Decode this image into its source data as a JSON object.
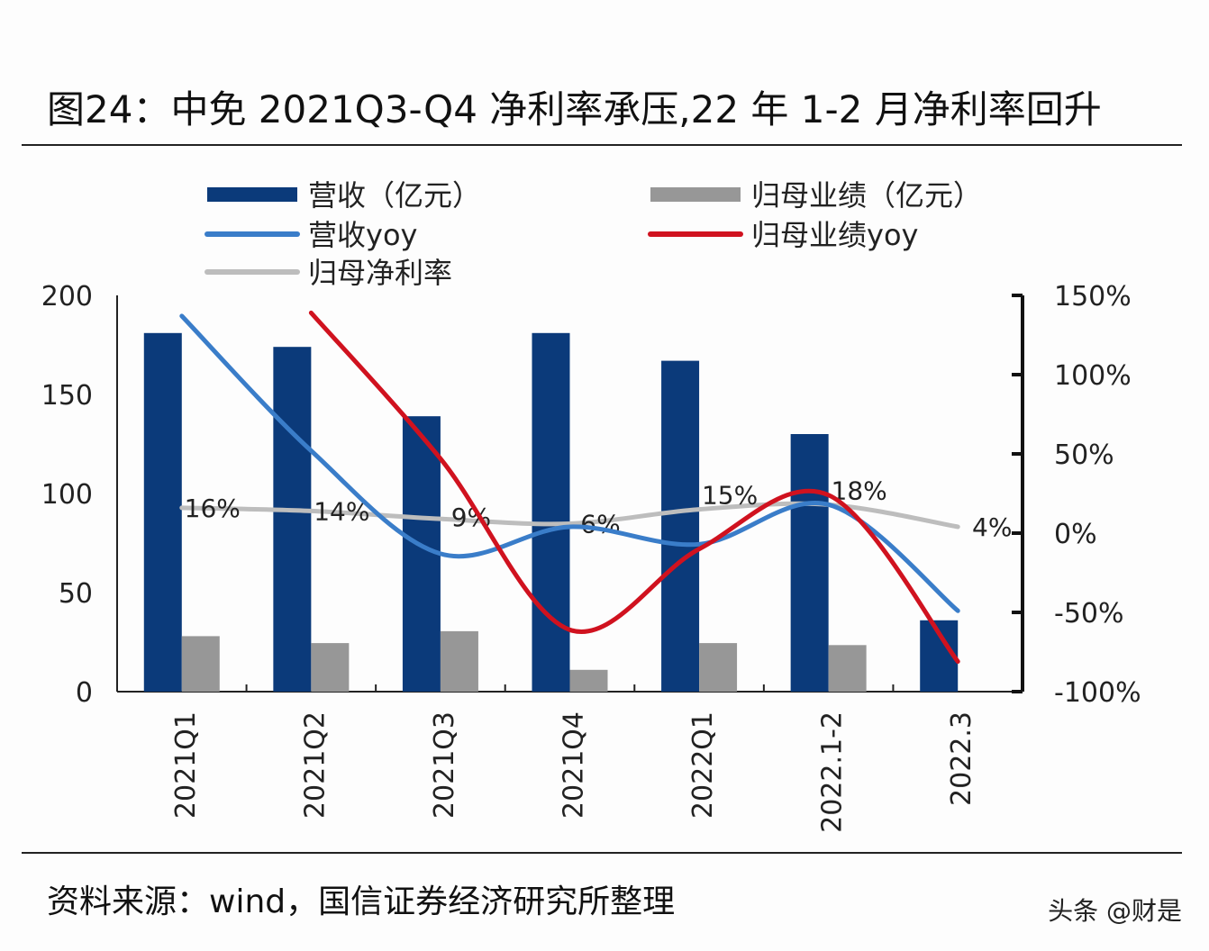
{
  "title": "图24：中免 2021Q3-Q4 净利率承压,22 年 1-2 月净利率回升",
  "source": "资料来源：wind，国信证券经济研究所整理",
  "watermark": "头条 @财是",
  "chart_data": {
    "type": "bar",
    "categories": [
      "2021Q1",
      "2021Q2",
      "2021Q3",
      "2021Q4",
      "2022Q1",
      "2022.1-2",
      "2022.3"
    ],
    "left_axis": {
      "ylim": [
        0,
        200
      ],
      "ticks": [
        "0",
        "50",
        "100",
        "150",
        "200"
      ],
      "values": [
        0,
        50,
        100,
        150,
        200
      ]
    },
    "right_axis": {
      "ylim": [
        -100,
        150
      ],
      "ticks": [
        "-100%",
        "-50%",
        "0%",
        "50%",
        "100%",
        "150%"
      ],
      "values": [
        -100,
        -50,
        0,
        50,
        100,
        150
      ]
    },
    "series": [
      {
        "name": "营收（亿元）",
        "kind": "bar",
        "axis": "left",
        "color": "#0b3a7a",
        "values": [
          181,
          174,
          139,
          181,
          167,
          130,
          36
        ]
      },
      {
        "name": "归母业绩（亿元）",
        "kind": "bar",
        "axis": "left",
        "color": "#979797",
        "values": [
          28,
          24.5,
          30.5,
          11,
          24.5,
          23.5,
          null
        ]
      },
      {
        "name": "营收yoy",
        "kind": "line",
        "axis": "right",
        "color": "#3a7dc9",
        "values": [
          137,
          52,
          -13,
          4,
          -7,
          18,
          -49
        ]
      },
      {
        "name": "归母业绩yoy",
        "kind": "line",
        "axis": "right",
        "color": "#d0121f",
        "values": [
          null,
          139,
          47,
          -61,
          -10,
          24,
          -81
        ]
      },
      {
        "name": "归母净利率",
        "kind": "line",
        "axis": "right",
        "color": "#bdbdbd",
        "values": [
          16,
          14,
          9,
          6,
          15,
          18,
          4
        ],
        "labels": [
          "16%",
          "14%",
          "9%",
          "6%",
          "15%",
          "18%",
          "4%"
        ]
      }
    ],
    "legend": "top",
    "grid": false
  }
}
